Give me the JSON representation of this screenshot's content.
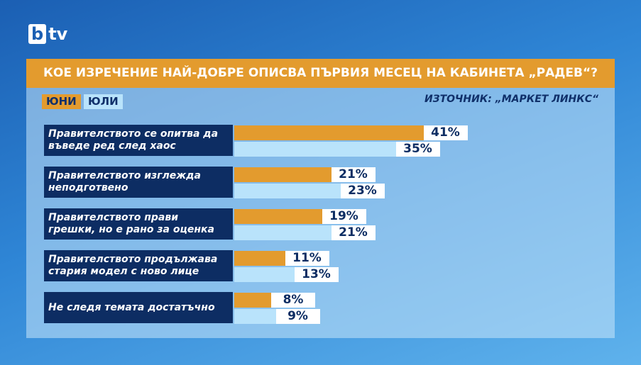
{
  "logo": {
    "mark": "b",
    "text": "tv"
  },
  "chart_data": {
    "type": "bar",
    "orientation": "horizontal",
    "title": "КОЕ ИЗРЕЧЕНИЕ НАЙ-ДОБРЕ ОПИСВА ПЪРВИЯ МЕСЕЦ НА КАБИНЕТА „РАДЕВ“?",
    "source": "ИЗТОЧНИК: „МАРКЕТ ЛИНКС“",
    "categories": [
      "Правителството се опитва да въведе ред след хаос",
      "Правителството изглежда неподготвено",
      "Правителството прави грешки, но е рано за оценка",
      "Правителството продължава стария модел с ново лице",
      "Не следя темата достатъчно"
    ],
    "series": [
      {
        "name": "ЮНИ",
        "color": "#e39b2e",
        "values": [
          41,
          21,
          19,
          11,
          8
        ],
        "value_labels": [
          "41%",
          "21%",
          "19%",
          "11%",
          "8%"
        ]
      },
      {
        "name": "ЮЛИ",
        "color": "#b9e3fb",
        "values": [
          35,
          23,
          21,
          13,
          9
        ],
        "value_labels": [
          "35%",
          "23%",
          "21%",
          "13%",
          "9%"
        ]
      }
    ]
  }
}
